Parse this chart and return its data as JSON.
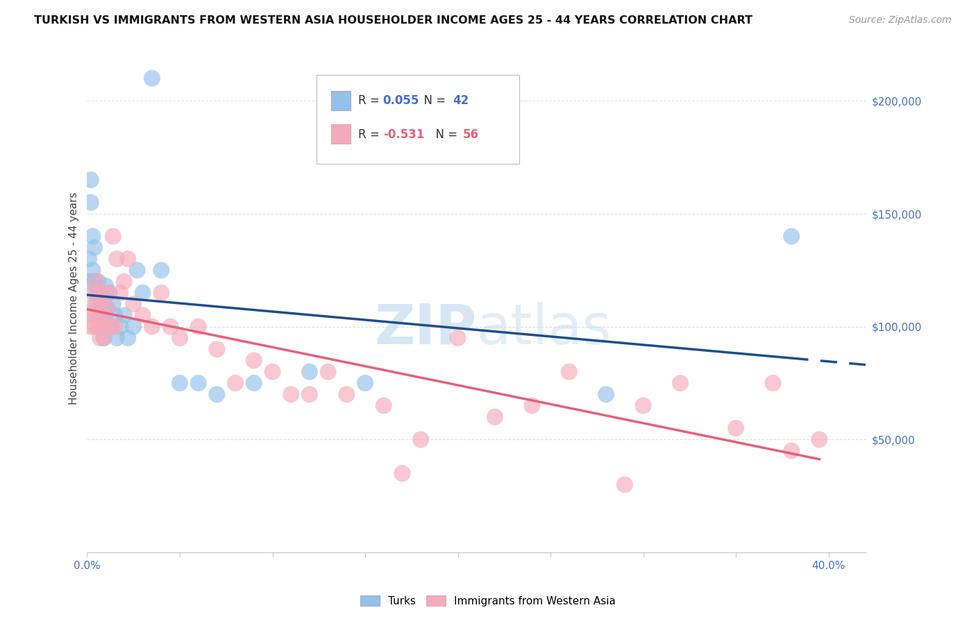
{
  "title": "TURKISH VS IMMIGRANTS FROM WESTERN ASIA HOUSEHOLDER INCOME AGES 25 - 44 YEARS CORRELATION CHART",
  "source": "Source: ZipAtlas.com",
  "ylabel": "Householder Income Ages 25 - 44 years",
  "yticks": [
    50000,
    100000,
    150000,
    200000
  ],
  "ytick_labels": [
    "$50,000",
    "$100,000",
    "$150,000",
    "$200,000"
  ],
  "xlim": [
    0.0,
    0.42
  ],
  "ylim": [
    0,
    225000
  ],
  "r1_text": "R = ",
  "r1_val": "0.055",
  "n1_text": "  N = ",
  "n1_val": "42",
  "r2_text": "R = ",
  "r2_val": "-0.531",
  "n2_text": "  N = ",
  "n2_val": "56",
  "legend_series1": "Turks",
  "legend_series2": "Immigrants from Western Asia",
  "blue_color": "#92C1EA",
  "pink_color": "#F5AABB",
  "line_blue": "#1D4F8C",
  "line_pink": "#E8607A",
  "text_blue": "#4472C4",
  "text_pink": "#E8607A",
  "watermark_color": "#C5DCF0",
  "turks_x": [
    0.001,
    0.001,
    0.002,
    0.002,
    0.003,
    0.003,
    0.004,
    0.004,
    0.005,
    0.005,
    0.006,
    0.006,
    0.007,
    0.007,
    0.008,
    0.008,
    0.009,
    0.009,
    0.01,
    0.01,
    0.011,
    0.012,
    0.013,
    0.014,
    0.015,
    0.016,
    0.018,
    0.02,
    0.022,
    0.025,
    0.027,
    0.03,
    0.035,
    0.04,
    0.05,
    0.06,
    0.07,
    0.09,
    0.12,
    0.15,
    0.28,
    0.38
  ],
  "turks_y": [
    130000,
    120000,
    165000,
    155000,
    140000,
    125000,
    135000,
    120000,
    115000,
    110000,
    120000,
    108000,
    115000,
    105000,
    110000,
    100000,
    112000,
    95000,
    118000,
    105000,
    108000,
    115000,
    100000,
    110000,
    105000,
    95000,
    100000,
    105000,
    95000,
    100000,
    125000,
    115000,
    210000,
    125000,
    75000,
    75000,
    70000,
    75000,
    80000,
    75000,
    70000,
    140000
  ],
  "western_asia_x": [
    0.001,
    0.002,
    0.003,
    0.003,
    0.004,
    0.004,
    0.005,
    0.005,
    0.006,
    0.006,
    0.007,
    0.007,
    0.008,
    0.008,
    0.009,
    0.009,
    0.01,
    0.01,
    0.011,
    0.012,
    0.013,
    0.014,
    0.015,
    0.016,
    0.018,
    0.02,
    0.022,
    0.025,
    0.03,
    0.035,
    0.04,
    0.045,
    0.05,
    0.06,
    0.07,
    0.08,
    0.09,
    0.1,
    0.11,
    0.12,
    0.13,
    0.14,
    0.16,
    0.17,
    0.18,
    0.2,
    0.22,
    0.24,
    0.26,
    0.29,
    0.3,
    0.32,
    0.35,
    0.37,
    0.38,
    0.395
  ],
  "western_asia_y": [
    105000,
    100000,
    115000,
    105000,
    110000,
    100000,
    120000,
    105000,
    115000,
    100000,
    110000,
    95000,
    112000,
    100000,
    105000,
    95000,
    115000,
    100000,
    108000,
    115000,
    100000,
    140000,
    100000,
    130000,
    115000,
    120000,
    130000,
    110000,
    105000,
    100000,
    115000,
    100000,
    95000,
    100000,
    90000,
    75000,
    85000,
    80000,
    70000,
    70000,
    80000,
    70000,
    65000,
    35000,
    50000,
    95000,
    60000,
    65000,
    80000,
    30000,
    65000,
    75000,
    55000,
    75000,
    45000,
    50000
  ],
  "xtick_positions": [
    0.0,
    0.05,
    0.1,
    0.15,
    0.2,
    0.25,
    0.3,
    0.35,
    0.4
  ],
  "grid_color": "#DDDDDD",
  "spine_color": "#CCCCCC"
}
